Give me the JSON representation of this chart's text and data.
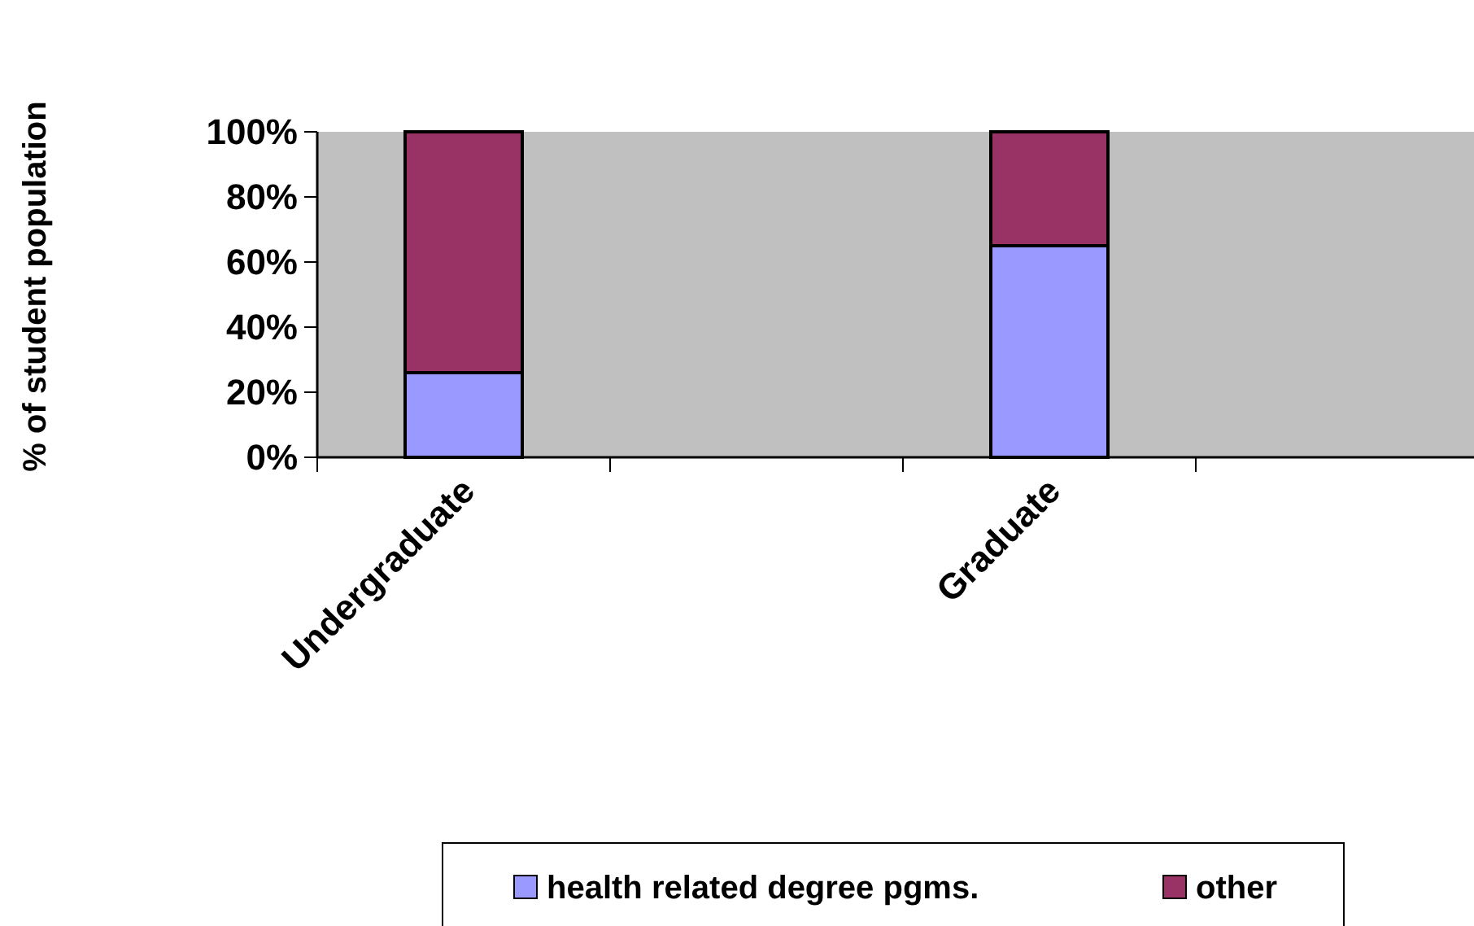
{
  "chart_data": {
    "type": "bar",
    "stacked": true,
    "ylabel": "% of student population",
    "categories": [
      "Undergraduate",
      null,
      "Graduate",
      null
    ],
    "series": [
      {
        "name": "health related degree pgms.",
        "color": "#9999ff",
        "values": [
          26,
          null,
          65,
          null
        ]
      },
      {
        "name": "other",
        "color": "#993366",
        "values": [
          74,
          null,
          35,
          null
        ]
      }
    ],
    "ylim": [
      0,
      100
    ],
    "yticks": [
      {
        "value": 0,
        "label": "0%"
      },
      {
        "value": 20,
        "label": "20%"
      },
      {
        "value": 40,
        "label": "40%"
      },
      {
        "value": 60,
        "label": "60%"
      },
      {
        "value": 80,
        "label": "80%"
      },
      {
        "value": 100,
        "label": "100%"
      }
    ],
    "grid": false,
    "legend": "bottom"
  }
}
